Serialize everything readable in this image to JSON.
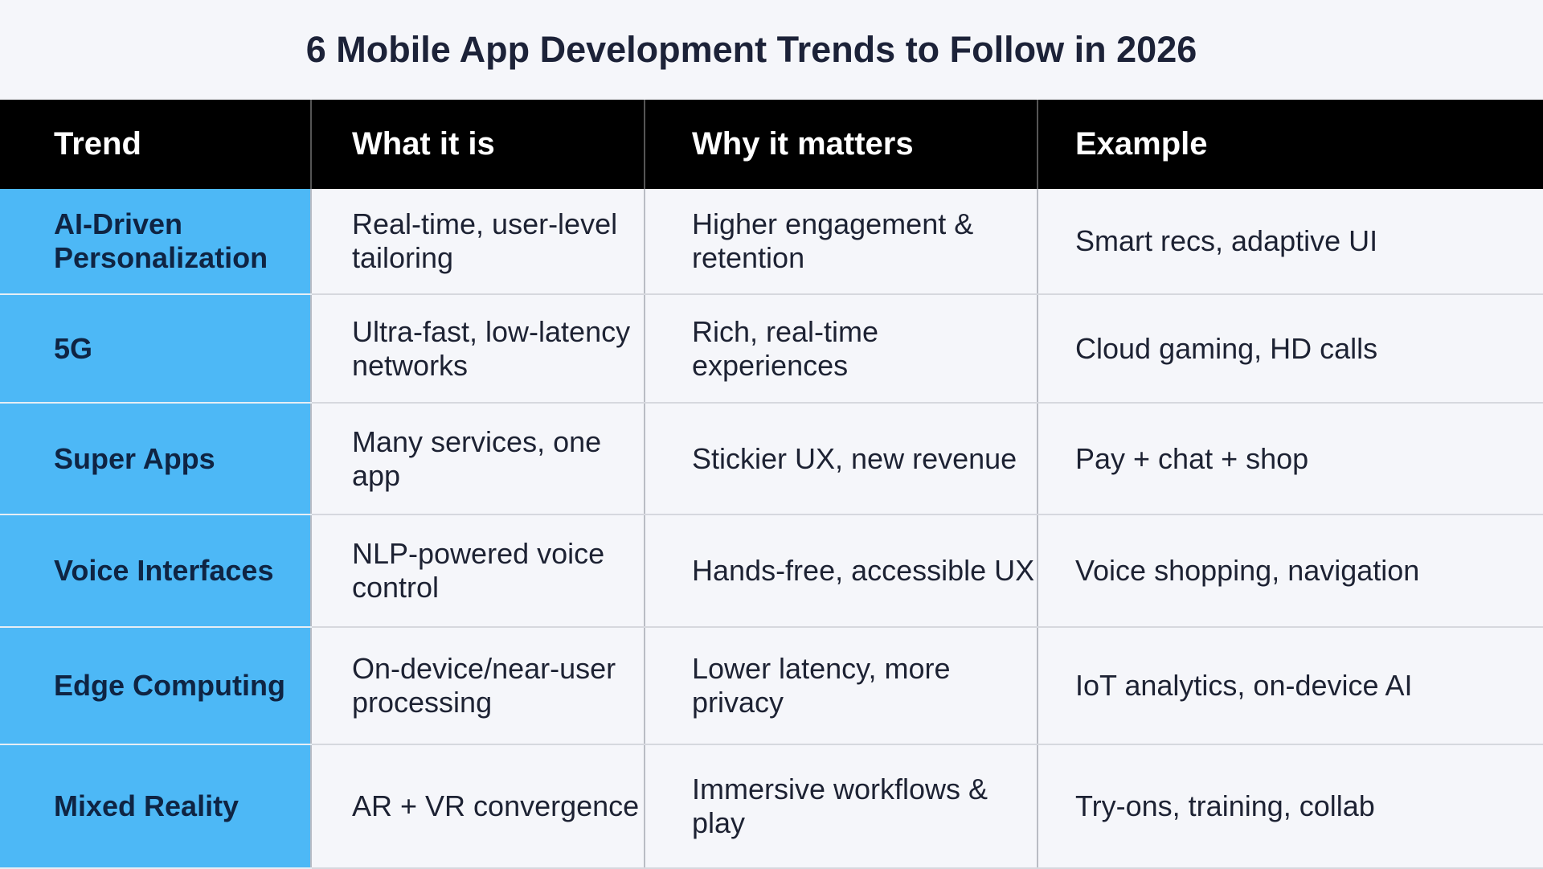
{
  "title": "6 Mobile App Development Trends to Follow in 2026",
  "headers": [
    "Trend",
    "What it is",
    "Why it matters",
    "Example"
  ],
  "rows": [
    {
      "trend": "AI-Driven Personalization",
      "what": "Real-time, user-level tailoring",
      "why": "Higher engagement & retention",
      "example": "Smart recs, adaptive UI"
    },
    {
      "trend": "5G",
      "what": "Ultra-fast, low-latency networks",
      "why": "Rich, real-time experiences",
      "example": "Cloud gaming, HD calls"
    },
    {
      "trend": "Super Apps",
      "what": "Many services, one app",
      "why": "Stickier UX, new revenue",
      "example": "Pay + chat + shop"
    },
    {
      "trend": "Voice Interfaces",
      "what": "NLP-powered voice control",
      "why": "Hands-free, accessible UX",
      "example": "Voice shopping, navigation"
    },
    {
      "trend": "Edge Computing",
      "what": "On-device/near-user processing",
      "why": "Lower latency, more privacy",
      "example": "IoT analytics, on-device AI"
    },
    {
      "trend": "Mixed Reality",
      "what": "AR + VR convergence",
      "why": "Immersive workflows & play",
      "example": "Try-ons, training, collab"
    }
  ],
  "colors": {
    "header_bg": "#000000",
    "trend_bg": "#4db8f6",
    "page_bg": "#f5f6fa"
  }
}
